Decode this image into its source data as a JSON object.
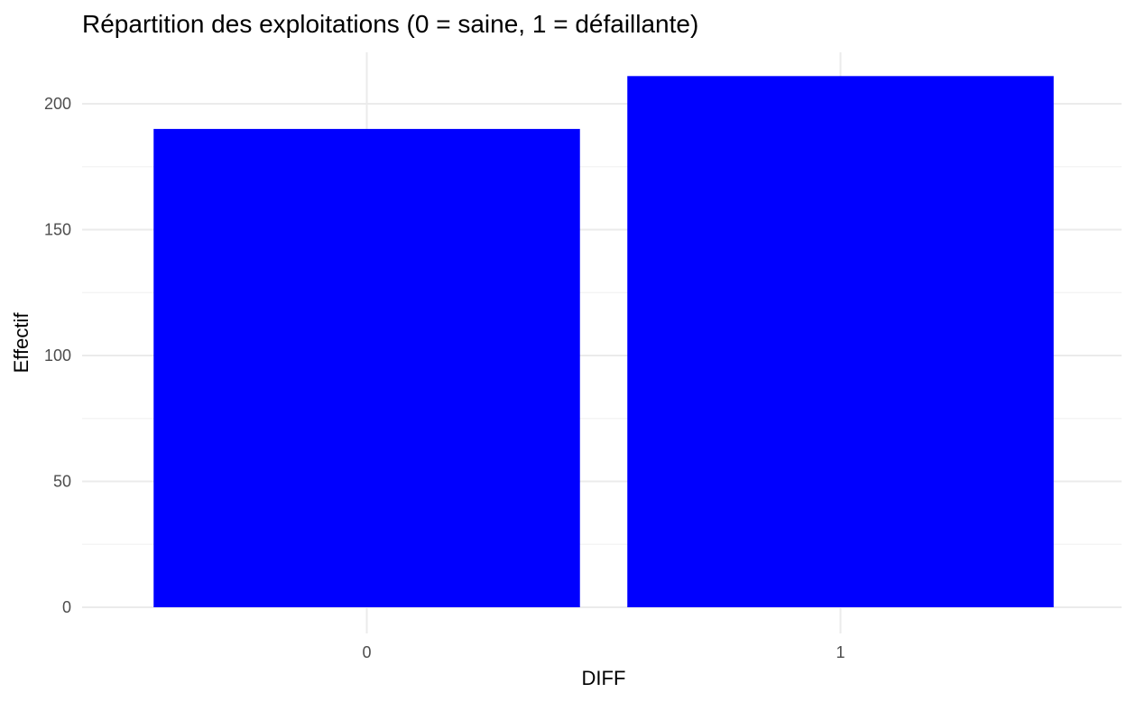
{
  "chart_data": {
    "type": "bar",
    "title": "Répartition des exploitations (0 = saine, 1 = défaillante)",
    "xlabel": "DIFF",
    "ylabel": "Effectif",
    "categories": [
      "0",
      "1"
    ],
    "values": [
      190,
      211
    ],
    "ylim": [
      0,
      215
    ],
    "yticks": [
      0,
      50,
      100,
      150,
      200
    ],
    "ytick_labels": [
      "0",
      "50",
      "100",
      "150",
      "200"
    ],
    "grid": true,
    "legend": "none",
    "bar_color": "#0000ff",
    "grid_color": "#ebebeb"
  }
}
